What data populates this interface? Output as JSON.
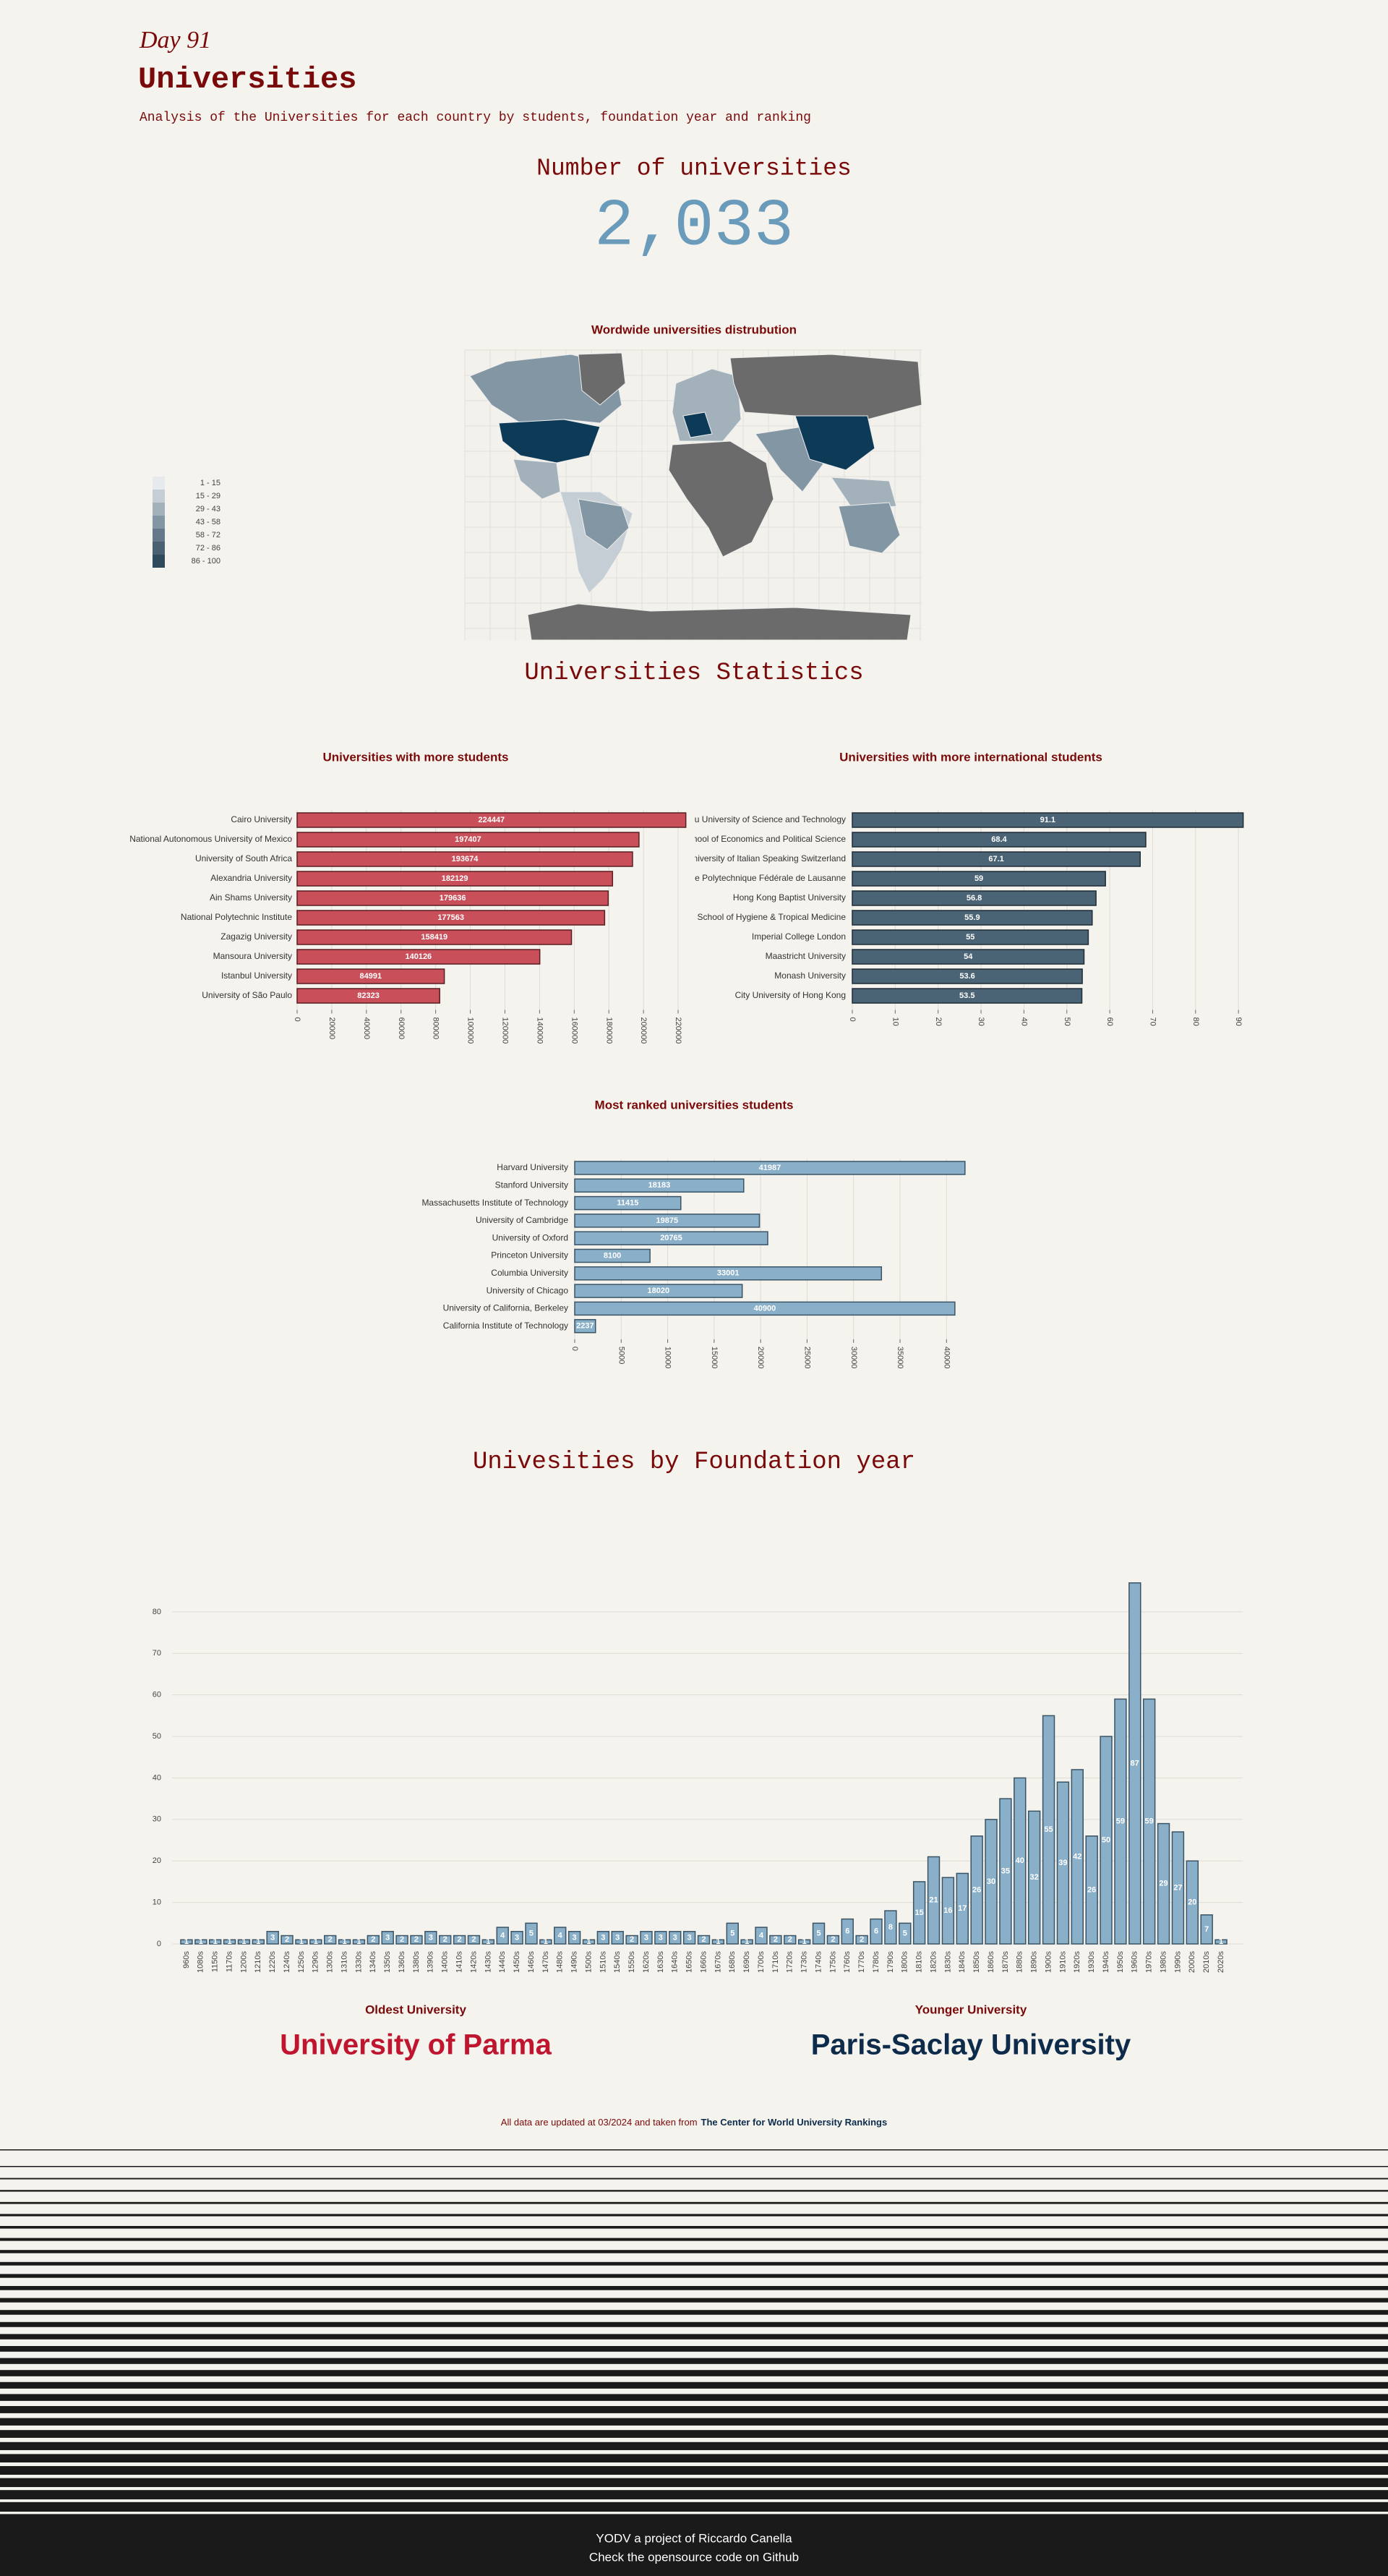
{
  "header": {
    "day": "Day 91",
    "title": "Universities",
    "subtitle": "Analysis of the Universities for each country by students, foundation year and ranking"
  },
  "kpi": {
    "label": "Number of universities",
    "value": 2033,
    "value_label": "2,033"
  },
  "map": {
    "title": "Wordwide universities distrubution",
    "legend": [
      "1 - 15",
      "15 - 29",
      "29 - 43",
      "43 - 58",
      "58 - 72",
      "72 - 86",
      "86 - 100"
    ],
    "colors": [
      "#e6eaed",
      "#c5ced5",
      "#a3b1bb",
      "#8396a3",
      "#66798a",
      "#4b6172",
      "#2f4a5c"
    ]
  },
  "section_stats": "Universities Statistics",
  "section_years": "Univesities by Foundation year",
  "chart_data": [
    {
      "type": "hbar",
      "title": "Universities with more students",
      "color": "#c9505a",
      "stroke": "#5a1e22",
      "grid": true,
      "categories": [
        "Cairo University",
        "National Autonomous University of Mexico",
        "University of South Africa",
        "Alexandria University",
        "Ain Shams University",
        "National Polytechnic Institute",
        "Zagazig University",
        "Mansoura University",
        "Istanbul University",
        "University of São Paulo"
      ],
      "values": [
        224447,
        197407,
        193674,
        182129,
        179636,
        177563,
        158419,
        140126,
        84991,
        82323
      ],
      "xlim": [
        0,
        225000
      ],
      "xticks": [
        0,
        20000,
        40000,
        60000,
        80000,
        100000,
        120000,
        140000,
        160000,
        180000,
        200000,
        220000
      ]
    },
    {
      "type": "hbar",
      "title": "Universities with more international students",
      "color": "#4a6475",
      "stroke": "#1e2d36",
      "grid": true,
      "categories": [
        "Macau University of Science and Technology",
        "London School of Economics and Political Science",
        "Università della Svizzera italiana - University of Italian Speaking Switzerland",
        "École Polytechnique Fédérale de Lausanne",
        "Hong Kong Baptist University",
        "London School of Hygiene & Tropical Medicine",
        "Imperial College London",
        "Maastricht University",
        "Monash University",
        "City University of Hong Kong"
      ],
      "values": [
        91.1,
        68.4,
        67.1,
        59,
        56.8,
        55.9,
        55,
        54,
        53.6,
        53.5
      ],
      "xlim": [
        0,
        92
      ],
      "xticks": [
        0,
        10,
        20,
        30,
        40,
        50,
        60,
        70,
        80,
        90
      ]
    },
    {
      "type": "hbar",
      "title": "Most ranked universities students",
      "color": "#8aafc8",
      "stroke": "#3a5466",
      "grid": true,
      "categories": [
        "Harvard University",
        "Stanford University",
        "Massachusetts Institute of Technology",
        "University of Cambridge",
        "University of Oxford",
        "Princeton University",
        "Columbia University",
        "University of Chicago",
        "University of California, Berkeley",
        "California Institute of Technology"
      ],
      "values": [
        41987,
        18183,
        11415,
        19875,
        20765,
        8100,
        33001,
        18020,
        40900,
        2237
      ],
      "xlim": [
        0,
        42000
      ],
      "xticks": [
        0,
        5000,
        10000,
        15000,
        20000,
        25000,
        30000,
        35000,
        40000
      ]
    },
    {
      "type": "bar",
      "color": "#8aafc8",
      "stroke": "#3a5466",
      "grid": true,
      "categories": [
        "960s",
        "1080s",
        "1150s",
        "1170s",
        "1200s",
        "1210s",
        "1220s",
        "1240s",
        "1250s",
        "1290s",
        "1300s",
        "1310s",
        "1330s",
        "1340s",
        "1350s",
        "1360s",
        "1380s",
        "1390s",
        "1400s",
        "1410s",
        "1420s",
        "1430s",
        "1440s",
        "1450s",
        "1460s",
        "1470s",
        "1480s",
        "1490s",
        "1500s",
        "1510s",
        "1540s",
        "1550s",
        "1620s",
        "1630s",
        "1640s",
        "1650s",
        "1660s",
        "1670s",
        "1680s",
        "1690s",
        "1700s",
        "1710s",
        "1720s",
        "1730s",
        "1740s",
        "1750s",
        "1760s",
        "1770s",
        "1780s",
        "1790s",
        "1800s",
        "1810s",
        "1820s",
        "1830s",
        "1840s",
        "1850s",
        "1860s",
        "1870s",
        "1880s",
        "1890s",
        "1900s",
        "1910s",
        "1920s",
        "1930s",
        "1940s",
        "1950s",
        "1960s",
        "1970s",
        "1980s",
        "1990s",
        "2000s",
        "2010s",
        "2020s"
      ],
      "values": [
        1,
        1,
        1,
        1,
        1,
        1,
        3,
        2,
        1,
        1,
        2,
        1,
        1,
        2,
        3,
        2,
        2,
        3,
        2,
        2,
        2,
        1,
        4,
        3,
        5,
        1,
        4,
        3,
        1,
        3,
        3,
        2,
        3,
        3,
        3,
        3,
        2,
        1,
        5,
        1,
        4,
        2,
        2,
        1,
        5,
        2,
        6,
        2,
        6,
        8,
        5,
        15,
        21,
        16,
        17,
        26,
        30,
        35,
        40,
        32,
        55,
        39,
        42,
        26,
        50,
        59,
        87,
        59,
        29,
        27,
        20,
        7,
        1
      ],
      "ylim": [
        0,
        88
      ],
      "yticks": [
        0,
        10,
        20,
        30,
        40,
        50,
        60,
        70,
        80
      ]
    }
  ],
  "records": {
    "oldest_label": "Oldest University",
    "oldest": "University of Parma",
    "youngest_label": "Younger University",
    "youngest": "Paris-Saclay University"
  },
  "note": {
    "text": "All data are updated at 03/2024 and taken from",
    "source": "The Center for World University Rankings"
  },
  "footer": {
    "line1": "YODV a project of Riccardo Canella",
    "line2": "Check the opensource code on Github"
  }
}
